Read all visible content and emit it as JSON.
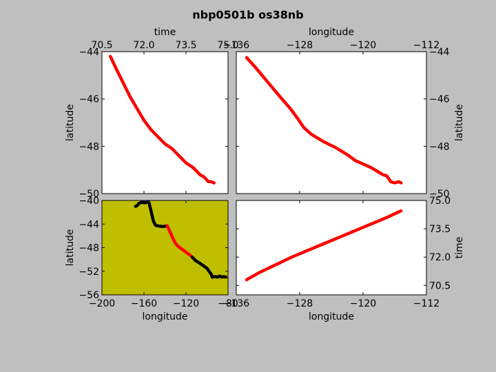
{
  "title": "nbp0501b os38nb",
  "chart_data": [
    {
      "type": "line",
      "panel": "time-latitude",
      "xlabel": "time",
      "ylabel": "latitude",
      "xlim": [
        70.5,
        75.0
      ],
      "ylim": [
        -50,
        -44
      ],
      "xticks": [
        "70.5",
        "72.0",
        "73.5",
        "75.0"
      ],
      "yticks": [
        "-44",
        "-46",
        "-48",
        "-50"
      ],
      "x_axis_position": "top",
      "y_axis_position": "left",
      "background": "#ffffff",
      "series": [
        {
          "color": "#ff0000",
          "x": [
            70.8,
            71.0,
            71.25,
            71.5,
            71.75,
            72.0,
            72.25,
            72.5,
            72.75,
            73.0,
            73.25,
            73.5,
            73.75,
            74.0,
            74.15,
            74.3,
            74.4,
            74.5
          ],
          "y": [
            -44.2,
            -44.7,
            -45.3,
            -45.9,
            -46.4,
            -46.9,
            -47.3,
            -47.6,
            -47.9,
            -48.1,
            -48.4,
            -48.7,
            -48.9,
            -49.2,
            -49.3,
            -49.5,
            -49.5,
            -49.55
          ]
        }
      ]
    },
    {
      "type": "line",
      "panel": "longitude-latitude",
      "xlabel": "longitude",
      "ylabel": "latitude",
      "xlim": [
        -136,
        -112
      ],
      "ylim": [
        -50,
        -44
      ],
      "xticks": [
        "-136",
        "-128",
        "-120",
        "-112"
      ],
      "yticks": [
        "-44",
        "-46",
        "-48",
        "-50"
      ],
      "x_axis_position": "top",
      "y_axis_position": "right",
      "background": "#ffffff",
      "series": [
        {
          "color": "#ff0000",
          "x": [
            -134.7,
            -133.5,
            -132.0,
            -130.5,
            -129.2,
            -128.3,
            -127.5,
            -126.5,
            -125.0,
            -123.5,
            -122.0,
            -121.0,
            -120.0,
            -119.0,
            -118.0,
            -117.5,
            -117.0,
            -116.5,
            -116.0,
            -115.5,
            -115.2
          ],
          "y": [
            -44.25,
            -44.7,
            -45.3,
            -45.9,
            -46.4,
            -46.8,
            -47.2,
            -47.5,
            -47.8,
            -48.05,
            -48.35,
            -48.6,
            -48.75,
            -48.9,
            -49.1,
            -49.2,
            -49.25,
            -49.5,
            -49.55,
            -49.5,
            -49.55
          ]
        }
      ]
    },
    {
      "type": "line",
      "panel": "longitude-latitude-map",
      "xlabel": "longitude",
      "ylabel": "latitude",
      "xlim": [
        -200,
        -80
      ],
      "ylim": [
        -56,
        -40
      ],
      "xticks": [
        "-200",
        "-160",
        "-120",
        "-80"
      ],
      "yticks": [
        "-40",
        "-44",
        "-48",
        "-52",
        "-56"
      ],
      "x_axis_position": "bottom",
      "y_axis_position": "left",
      "background": "#bfbf00",
      "series": [
        {
          "color": "#000000",
          "x": [
            -168,
            -166,
            -165,
            -162,
            -159,
            -156,
            -155,
            -153,
            -151,
            -149,
            -147,
            -143,
            -141,
            -138
          ],
          "y": [
            -41.0,
            -40.8,
            -40.5,
            -40.3,
            -40.4,
            -40.2,
            -40.5,
            -42.0,
            -43.5,
            -44.2,
            -44.3,
            -44.4,
            -44.4,
            -44.3
          ]
        },
        {
          "color": "#ff0000",
          "x": [
            -138,
            -136,
            -134,
            -132,
            -130,
            -128,
            -125,
            -122,
            -119,
            -116,
            -114
          ],
          "y": [
            -44.3,
            -45.0,
            -45.8,
            -46.6,
            -47.3,
            -47.7,
            -48.1,
            -48.5,
            -48.9,
            -49.3,
            -49.6
          ]
        },
        {
          "color": "#000000",
          "x": [
            -114,
            -111,
            -108,
            -104,
            -100,
            -98,
            -96,
            -95,
            -92,
            -90,
            -88,
            -86,
            -84,
            -82
          ],
          "y": [
            -49.6,
            -50.2,
            -50.5,
            -51.0,
            -51.5,
            -52.0,
            -52.5,
            -53.0,
            -52.9,
            -53.0,
            -52.8,
            -53.0,
            -52.9,
            -53.0
          ]
        }
      ]
    },
    {
      "type": "line",
      "panel": "longitude-time",
      "xlabel": "longitude",
      "ylabel": "time",
      "xlim": [
        -136,
        -112
      ],
      "ylim": [
        70.0,
        75.0
      ],
      "xticks": [
        "-136",
        "-128",
        "-120",
        "-112"
      ],
      "yticks": [
        "75.0",
        "73.5",
        "72.0",
        "70.5"
      ],
      "x_axis_position": "bottom",
      "y_axis_position": "right",
      "background": "#ffffff",
      "series": [
        {
          "color": "#ff0000",
          "x": [
            -134.7,
            -133.0,
            -131.0,
            -129.0,
            -127.0,
            -125.0,
            -123.0,
            -121.0,
            -119.0,
            -117.0,
            -115.2
          ],
          "y": [
            70.8,
            71.2,
            71.6,
            72.0,
            72.35,
            72.7,
            73.05,
            73.4,
            73.75,
            74.1,
            74.45
          ]
        }
      ]
    }
  ]
}
